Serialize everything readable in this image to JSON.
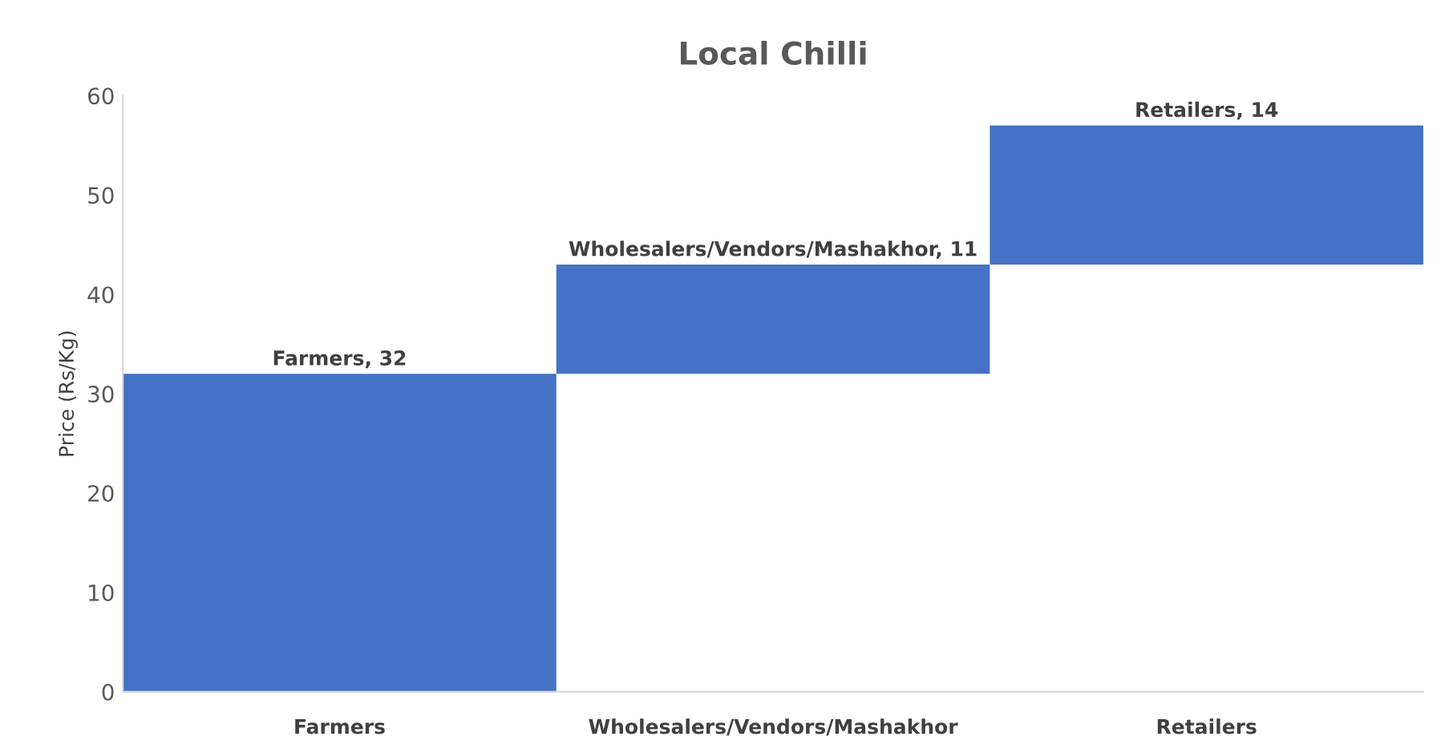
{
  "chart_data": {
    "type": "bar",
    "title": "Local Chilli",
    "ylabel": "Price (Rs/Kg)",
    "categories": [
      "Farmers",
      "Wholesalers/Vendors/Mashakhor",
      "Retailers"
    ],
    "values": [
      32,
      11,
      14
    ],
    "base": [
      0,
      32,
      43
    ],
    "color": "#4472c4",
    "value_labels": [
      "Farmers, 32",
      "Wholesalers/Vendors/Mashakhor, 11",
      "Retailers, 14"
    ],
    "ylim": [
      0,
      60
    ],
    "yticks": [
      0,
      10,
      20,
      30,
      40,
      50,
      60
    ],
    "grid": false,
    "legend": false
  }
}
